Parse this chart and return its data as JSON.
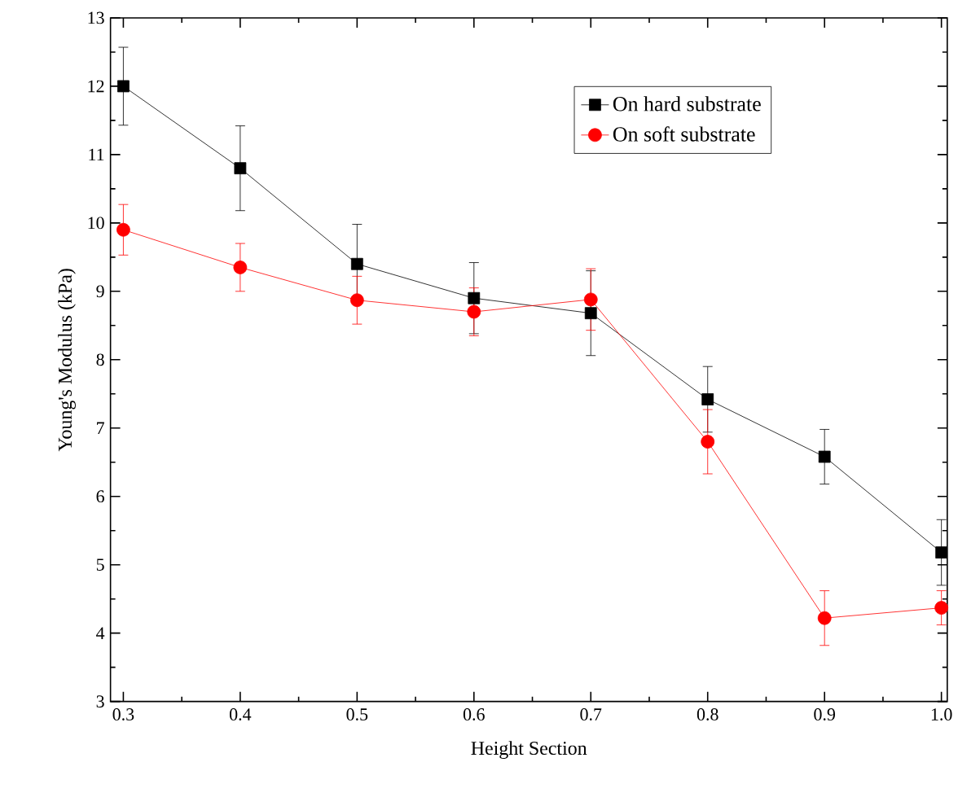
{
  "chart_data": {
    "type": "line",
    "xlabel": "Height Section",
    "ylabel": "Young's Modulus (kPa)",
    "x": [
      0.3,
      0.4,
      0.5,
      0.6,
      0.7,
      0.8,
      0.9,
      1.0
    ],
    "series": [
      {
        "name": "On hard substrate",
        "color": "#000000",
        "marker": "square",
        "values": [
          12.0,
          10.8,
          9.4,
          8.9,
          8.68,
          7.42,
          6.58,
          5.18
        ],
        "errors": [
          0.57,
          0.62,
          0.58,
          0.52,
          0.62,
          0.48,
          0.4,
          0.48
        ]
      },
      {
        "name": "On soft substrate",
        "color": "#ff0000",
        "marker": "circle",
        "values": [
          9.9,
          9.35,
          8.87,
          8.7,
          8.88,
          6.8,
          4.22,
          4.37
        ],
        "errors": [
          0.37,
          0.35,
          0.35,
          0.35,
          0.45,
          0.47,
          0.4,
          0.25
        ]
      }
    ],
    "xlim": [
      0.289,
      1.005
    ],
    "ylim": [
      3,
      13
    ],
    "xticks": [
      0.3,
      0.4,
      0.5,
      0.6,
      0.7,
      0.8,
      0.9,
      {
        "value": 1.0,
        "label": "1.0"
      }
    ],
    "yticks": [
      3,
      4,
      5,
      6,
      7,
      8,
      9,
      10,
      11,
      12,
      13
    ],
    "legend": "top right",
    "grid": false,
    "line_style": "solid"
  }
}
